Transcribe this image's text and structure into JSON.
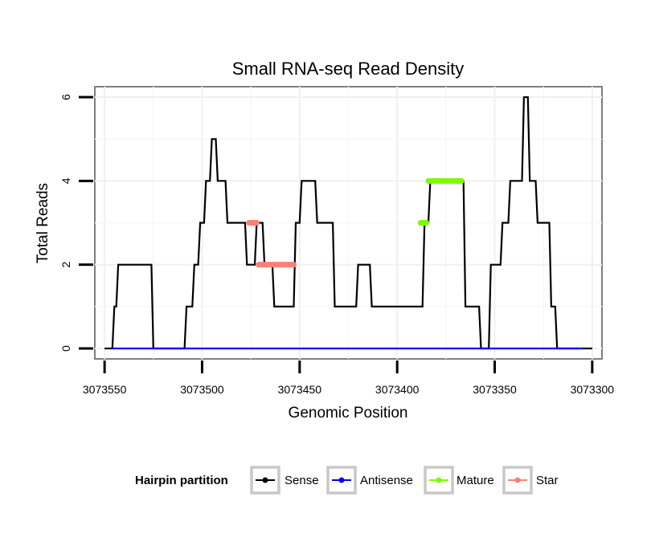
{
  "chart_data": {
    "type": "line",
    "title": "Small RNA-seq Read Density",
    "xlabel": "Genomic Position",
    "ylabel": "Total Reads",
    "xlim": [
      3073555,
      3073295
    ],
    "ylim": [
      -0.25,
      6.25
    ],
    "x_ticks": [
      3073550,
      3073500,
      3073450,
      3073400,
      3073350,
      3073300
    ],
    "x_tick_labels": [
      "3073550",
      "3073500",
      "3073450",
      "3073400",
      "3073350",
      "3073300"
    ],
    "y_ticks": [
      0,
      2,
      4,
      6
    ],
    "y_tick_labels": [
      "0",
      "2",
      "4",
      "6"
    ],
    "grid": true,
    "legend": {
      "title": "Hairpin partition",
      "position": "bottom",
      "items": [
        {
          "label": "Sense",
          "color": "#000000"
        },
        {
          "label": "Antisense",
          "color": "#0000ff"
        },
        {
          "label": "Mature",
          "color": "#7cfc00"
        },
        {
          "label": "Star",
          "color": "#fa8072"
        }
      ]
    },
    "series": [
      {
        "name": "Sense",
        "color": "#000000",
        "x": [
          3073550,
          3073546,
          3073545,
          3073544,
          3073543,
          3073526,
          3073525,
          3073509,
          3073508,
          3073505,
          3073504,
          3073502,
          3073501,
          3073499,
          3073498,
          3073496,
          3073495,
          3073493,
          3073492,
          3073488,
          3073487,
          3073478,
          3073477,
          3073473,
          3073472,
          3073469,
          3073468,
          3073464,
          3073463,
          3073453,
          3073452,
          3073450,
          3073449,
          3073442,
          3073441,
          3073433,
          3073432,
          3073421,
          3073420,
          3073414,
          3073413,
          3073411,
          3073410,
          3073387,
          3073386,
          3073384,
          3073383,
          3073366,
          3073365,
          3073358,
          3073357,
          3073353,
          3073352,
          3073347,
          3073346,
          3073343,
          3073342,
          3073336,
          3073335,
          3073333,
          3073332,
          3073329,
          3073328,
          3073322,
          3073321,
          3073319,
          3073318,
          3073313,
          3073312,
          3073307,
          3073306,
          3073305,
          3073304,
          3073301,
          3073300
        ],
        "y": [
          0,
          0,
          1,
          1,
          2,
          2,
          0,
          0,
          1,
          1,
          2,
          2,
          3,
          3,
          4,
          4,
          5,
          5,
          4,
          4,
          3,
          3,
          2,
          2,
          3,
          3,
          2,
          2,
          1,
          1,
          3,
          3,
          4,
          4,
          3,
          3,
          1,
          1,
          2,
          2,
          1,
          1,
          1,
          1,
          3,
          3,
          4,
          4,
          1,
          1,
          0,
          0,
          2,
          2,
          3,
          3,
          4,
          4,
          6,
          6,
          4,
          4,
          3,
          3,
          1,
          1,
          0,
          0,
          0,
          0,
          0,
          0,
          0,
          0,
          0
        ]
      },
      {
        "name": "Antisense",
        "color": "#0000ff",
        "x": [
          3073546,
          3073305
        ],
        "y": [
          0,
          0
        ]
      },
      {
        "name": "Mature",
        "color": "#7cfc00",
        "segments": [
          {
            "x": [
              3073388,
              3073385
            ],
            "y": 3
          },
          {
            "x": [
              3073384,
              3073367
            ],
            "y": 4
          }
        ]
      },
      {
        "name": "Star",
        "color": "#fa8072",
        "segments": [
          {
            "x": [
              3073476,
              3073472
            ],
            "y": 3
          },
          {
            "x": [
              3073471,
              3073453
            ],
            "y": 2
          }
        ]
      }
    ]
  }
}
